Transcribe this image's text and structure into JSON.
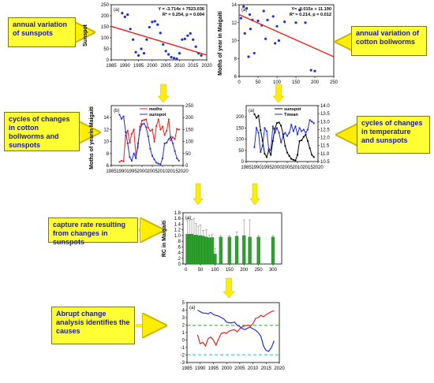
{
  "labels": {
    "sunspots": "annual variation of sunspots",
    "bollworms": "annual variation of cotton bollworms",
    "cycles_cotton": "cycles of changes in cotton bollworms and sunspots",
    "cycles_temp": "cycles of changes in temperature and sunspots",
    "capture": "capture rate resulting from changes in sunspots",
    "abrupt": "Abrupt change analysis identifies the causes"
  },
  "colors": {
    "label_bg": "#ffff33",
    "label_text": "#1a1a99",
    "arrow": "#ffee00",
    "red": "#e8201c",
    "blue": "#1f2fd8",
    "green": "#2ea02e",
    "cyan": "#22c0c0"
  },
  "chart_data": [
    {
      "id": "sunspot-scatter",
      "type": "scatter",
      "panel": "(a)",
      "ylabel": "Sunspot",
      "ylim": [
        0,
        250
      ],
      "xlim": [
        1985,
        2020
      ],
      "xticks": [
        "1985",
        "1990",
        "1995",
        "2000",
        "2005",
        "2010",
        "2015",
        "2020"
      ],
      "yticks": [
        "0",
        "50",
        "100",
        "150",
        "200",
        "250"
      ],
      "equation": "Y = -3.714x + 7523.036",
      "stats": "R² = 0.254, p = 0.004",
      "x": [
        1989,
        1990,
        1991,
        1992,
        1993,
        1994,
        1995,
        1996,
        1997,
        1998,
        1999,
        2000,
        2001,
        2002,
        2003,
        2004,
        2005,
        2006,
        2007,
        2008,
        2009,
        2010,
        2011,
        2012,
        2013,
        2014,
        2015,
        2016,
        2017,
        2018
      ],
      "y": [
        212,
        195,
        205,
        140,
        92,
        35,
        20,
        50,
        30,
        92,
        148,
        172,
        175,
        160,
        122,
        70,
        40,
        25,
        12,
        8,
        5,
        30,
        92,
        95,
        110,
        120,
        92,
        60,
        30,
        20
      ],
      "trend": [
        [
          1985,
          152
        ],
        [
          2020,
          22
        ]
      ]
    },
    {
      "id": "moths-scatter",
      "type": "scatter",
      "panel": "(a)",
      "ylabel": "Moths of year in Maigaiti",
      "ylim": [
        6,
        14
      ],
      "xlim": [
        0,
        250
      ],
      "xticks": [
        "0",
        "50",
        "100",
        "150",
        "200",
        "250"
      ],
      "yticks": [
        "6",
        "8",
        "10",
        "12",
        "14"
      ],
      "equation": "Y= -0.015x + 11.190",
      "stats": "R² = 0.214, p = 0.012",
      "x": [
        5,
        12,
        15,
        20,
        25,
        28,
        30,
        35,
        40,
        50,
        60,
        65,
        70,
        75,
        90,
        95,
        100,
        105,
        120,
        150,
        160,
        175,
        190,
        200
      ],
      "y": [
        12.5,
        13.8,
        10.8,
        13.6,
        8.2,
        12.9,
        11.3,
        12.3,
        8.6,
        12.2,
        11.7,
        13.3,
        10.2,
        12.3,
        12.7,
        9.7,
        11.6,
        10.0,
        12.1,
        12.0,
        13.4,
        12.0,
        6.7,
        6.6
      ],
      "trend": [
        [
          0,
          12.9
        ],
        [
          250,
          8.2
        ]
      ]
    },
    {
      "id": "cycles-moth-sunspot",
      "type": "line",
      "panel": "(b)",
      "ylabel": "Moths of yearin Maigaiti",
      "ylim_left": [
        6,
        16
      ],
      "ylim_right": [
        0,
        250
      ],
      "xlim": [
        1985,
        2020
      ],
      "xticks": [
        "1985",
        "1990",
        "1995",
        "2000",
        "2005",
        "2010",
        "2015",
        "2020"
      ],
      "yticks_left": [
        "6",
        "8",
        "10",
        "12",
        "14"
      ],
      "yticks_right": [
        "0",
        "50",
        "100",
        "150",
        "200",
        "250"
      ],
      "x": [
        1989,
        1990,
        1991,
        1992,
        1993,
        1994,
        1995,
        1996,
        1997,
        1998,
        1999,
        2000,
        2001,
        2002,
        2003,
        2004,
        2005,
        2006,
        2007,
        2008,
        2009,
        2010,
        2011,
        2012,
        2013,
        2014,
        2015,
        2016,
        2017,
        2018
      ],
      "series": [
        {
          "name": "moths",
          "axis": "left",
          "values": [
            6.6,
            6.8,
            6.7,
            11.0,
            11.8,
            9.8,
            11.3,
            12.0,
            7.8,
            9.0,
            12.5,
            13.5,
            13.6,
            13.7,
            12.3,
            11.8,
            12.0,
            10.0,
            12.6,
            13.7,
            12.0,
            12.5,
            11.1,
            11.8,
            13.7,
            10.2,
            10.7,
            10.4,
            12.1,
            12.0
          ]
        },
        {
          "name": "sunspot",
          "axis": "right",
          "values": [
            212,
            195,
            205,
            140,
            92,
            35,
            20,
            50,
            30,
            92,
            148,
            172,
            175,
            160,
            122,
            70,
            40,
            25,
            12,
            8,
            5,
            30,
            92,
            95,
            110,
            120,
            92,
            60,
            30,
            20
          ]
        }
      ]
    },
    {
      "id": "cycles-temp-sunspot",
      "type": "line",
      "panel": "(a)",
      "ylim_left": [
        0,
        250
      ],
      "ylim_right": [
        10.5,
        14.0
      ],
      "xlim": [
        1985,
        2020
      ],
      "xticks": [
        "1985",
        "1990",
        "1995",
        "2000",
        "2005",
        "2010",
        "2015",
        "2020"
      ],
      "yticks_left": [
        "0",
        "50",
        "100",
        "150",
        "200"
      ],
      "yticks_right": [
        "10.5",
        "11.0",
        "11.5",
        "12.0",
        "12.5",
        "13.0",
        "13.5",
        "14.0"
      ],
      "x": [
        1989,
        1990,
        1991,
        1992,
        1993,
        1994,
        1995,
        1996,
        1997,
        1998,
        1999,
        2000,
        2001,
        2002,
        2003,
        2004,
        2005,
        2006,
        2007,
        2008,
        2009,
        2010,
        2011,
        2012,
        2013,
        2014,
        2015,
        2016,
        2017,
        2018
      ],
      "series": [
        {
          "name": "sunspot",
          "axis": "left",
          "values": [
            212,
            195,
            205,
            140,
            92,
            35,
            20,
            50,
            30,
            92,
            148,
            172,
            175,
            160,
            122,
            70,
            40,
            25,
            12,
            8,
            5,
            30,
            92,
            95,
            110,
            120,
            92,
            60,
            30,
            20
          ]
        },
        {
          "name": "Tmean",
          "axis": "right",
          "values": [
            11.4,
            12.6,
            12.3,
            11.1,
            11.5,
            12.6,
            12.4,
            11.3,
            11.2,
            12.7,
            12.3,
            12.6,
            12.3,
            11.7,
            12.1,
            12.3,
            12.1,
            12.3,
            12.8,
            12.4,
            12.7,
            12.2,
            12.6,
            12.4,
            12.5,
            12.3,
            12.5,
            13.1,
            13.0,
            12.9
          ]
        }
      ]
    },
    {
      "id": "capture-rate-bars",
      "type": "bar",
      "panel": "(a)",
      "ylabel": "RC in Maigaiti",
      "ylim": [
        0,
        1.8
      ],
      "xlim": [
        -10,
        330
      ],
      "xticks": [
        "0",
        "50",
        "100",
        "150",
        "200",
        "250",
        "300"
      ],
      "yticks": [
        "0",
        ".2",
        ".4",
        ".6",
        ".8",
        "1.0",
        "1.2",
        "1.4",
        "1.6",
        "1.8"
      ],
      "x": [
        5,
        12,
        20,
        28,
        35,
        42,
        50,
        60,
        70,
        80,
        90,
        100,
        120,
        150,
        175,
        200,
        220,
        250,
        300
      ],
      "values": [
        1.05,
        1.05,
        1.05,
        1.0,
        1.02,
        0.98,
        1.0,
        0.98,
        0.95,
        0.92,
        0.93,
        0.35,
        0.95,
        0.95,
        0.98,
        1.0,
        0.95,
        0.95,
        0.95
      ],
      "errors": [
        0.55,
        0.5,
        0.52,
        0.6,
        0.4,
        0.35,
        0.38,
        0.2,
        0.25,
        0.1,
        0.12,
        0.2,
        0.05,
        0.05,
        0.15,
        0.55,
        0.6,
        0.05,
        0.05
      ]
    },
    {
      "id": "abrupt-change",
      "type": "line",
      "panel": "(a)",
      "ylim": [
        -3,
        5
      ],
      "xlim": [
        1985,
        2020
      ],
      "xticks": [
        "1985",
        "1990",
        "1995",
        "2000",
        "2005",
        "2010",
        "2015",
        "2020"
      ],
      "yticks": [
        "-3",
        "-2",
        "-1",
        "0",
        "1",
        "2",
        "3",
        "4",
        "5"
      ],
      "x": [
        1989,
        1990,
        1991,
        1992,
        1993,
        1994,
        1995,
        1996,
        1997,
        1998,
        1999,
        2000,
        2001,
        2002,
        2003,
        2004,
        2005,
        2006,
        2007,
        2008,
        2009,
        2010,
        2011,
        2012,
        2013,
        2014,
        2015,
        2016,
        2017,
        2018
      ],
      "series": [
        {
          "values": [
            0.7,
            -0.5,
            -0.3,
            -0.8,
            0.2,
            0.4,
            0.0,
            -0.7,
            0.2,
            0.9,
            1.0,
            0.9,
            1.2,
            1.3,
            1.4,
            1.1,
            1.5,
            1.8,
            1.9,
            2.0,
            1.8,
            2.2,
            2.9,
            3.0,
            3.3,
            3.1,
            3.4,
            3.6,
            3.8,
            3.9
          ],
          "color": "red"
        },
        {
          "values": [
            4.0,
            3.8,
            3.6,
            3.6,
            3.5,
            3.7,
            3.4,
            3.3,
            3.2,
            3.0,
            2.8,
            2.4,
            2.3,
            2.3,
            2.4,
            2.0,
            1.8,
            1.5,
            1.4,
            1.6,
            1.7,
            1.5,
            1.3,
            1.0,
            0.5,
            -0.8,
            -1.4,
            -1.5,
            -1.0,
            -0.1
          ],
          "color": "blue"
        }
      ],
      "thresholds": [
        {
          "value": 1.96,
          "color": "green"
        },
        {
          "value": -1.96,
          "color": "cyan"
        }
      ]
    }
  ]
}
